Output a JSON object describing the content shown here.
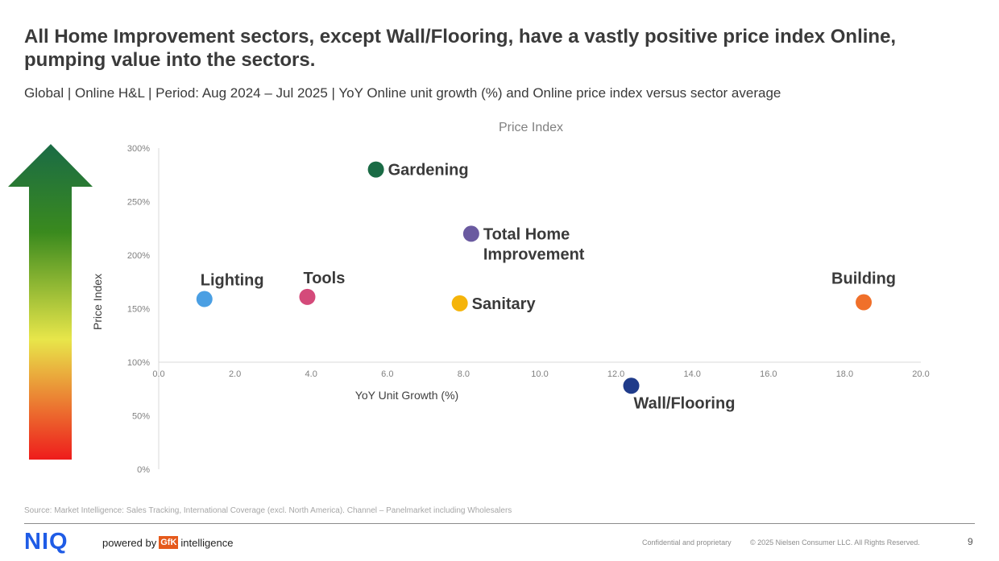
{
  "title": "All Home Improvement sectors, except Wall/Flooring, have a vastly positive price index Online, pumping value into the sectors.",
  "subtitle": "Global | Online H&L | Period: Aug 2024 – Jul 2025 | YoY Online unit growth (%) and Online price index versus sector average",
  "chart_data": {
    "type": "scatter",
    "title": "Price Index",
    "xlabel": "YoY Unit Growth (%)",
    "ylabel": "Price Index",
    "xlim": [
      0,
      20
    ],
    "ylim": [
      0,
      300
    ],
    "x_ticks": [
      "0.0",
      "2.0",
      "4.0",
      "6.0",
      "8.0",
      "10.0",
      "12.0",
      "14.0",
      "16.0",
      "18.0",
      "20.0"
    ],
    "y_ticks": [
      "0%",
      "50%",
      "100%",
      "150%",
      "200%",
      "250%",
      "300%"
    ],
    "x_axis_crosses_at_y": 100,
    "grid": false,
    "legend": "none",
    "points": [
      {
        "label": "Gardening",
        "x": 5.7,
        "y": 280,
        "color": "#1a6b45",
        "label_pos": "right"
      },
      {
        "label": "Total Home Improvement",
        "label_lines": [
          "Total Home",
          "Improvement"
        ],
        "x": 8.2,
        "y": 220,
        "color": "#6a5aa0",
        "label_pos": "right"
      },
      {
        "label": "Lighting",
        "x": 1.2,
        "y": 159,
        "color": "#4a9fe3",
        "label_pos": "above"
      },
      {
        "label": "Tools",
        "x": 3.9,
        "y": 161,
        "color": "#d44a7a",
        "label_pos": "above"
      },
      {
        "label": "Sanitary",
        "x": 7.9,
        "y": 155,
        "color": "#f5b40a",
        "label_pos": "right"
      },
      {
        "label": "Building",
        "x": 18.5,
        "y": 156,
        "color": "#f0702a",
        "label_pos": "above"
      },
      {
        "label": "Wall/Flooring",
        "x": 12.4,
        "y": 78,
        "color": "#1f3b8a",
        "label_pos": "below"
      }
    ]
  },
  "footer": {
    "source": "Source: Market Intelligence: Sales Tracking, International Coverage (excl. North America). Channel – Panelmarket including Wholesalers",
    "logo": "NIQ",
    "powered_by": "powered by",
    "gfk": "GfK",
    "intelligence": "intelligence",
    "confidential": "Confidential and proprietary",
    "copyright": "© 2025 Nielsen Consumer LLC. All Rights Reserved.",
    "page": "9"
  },
  "colors": {
    "arrow_top": "#1a6b45",
    "arrow_mid_green": "#3a8a1e",
    "arrow_yellow": "#e8e64a",
    "arrow_bottom": "#ee1c1c",
    "axis": "#d9d9d9",
    "tick_text": "#808080"
  }
}
